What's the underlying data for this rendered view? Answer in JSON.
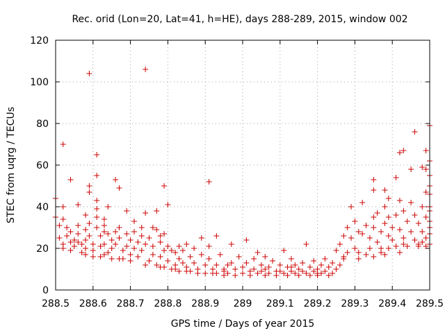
{
  "chart_data": {
    "type": "scatter",
    "title": "Rec. orid (Lon=20, Lat=41, h=HE), days 288-289, 2015, window 002",
    "xlabel": "GPS time / Days of year 2015",
    "ylabel": "STEC from uqrg / TECUs",
    "xlim": [
      288.5,
      289.5
    ],
    "ylim": [
      0,
      120
    ],
    "xticks": [
      288.5,
      288.6,
      288.7,
      288.8,
      288.9,
      289.0,
      289.1,
      289.2,
      289.3,
      289.4,
      289.5
    ],
    "xtick_labels": [
      "288.5",
      "288.6",
      "288.7",
      "288.8",
      "288.9",
      "289",
      "289.1",
      "289.2",
      "289.3",
      "289.4",
      "289.5"
    ],
    "yticks": [
      0,
      20,
      40,
      60,
      80,
      100,
      120
    ],
    "ytick_labels": [
      "0",
      "20",
      "40",
      "60",
      "80",
      "100",
      "120"
    ],
    "grid": true,
    "marker": "+",
    "color": "#cc0000",
    "series": [
      {
        "name": "STEC",
        "points": [
          [
            288.5,
            44
          ],
          [
            288.5,
            35
          ],
          [
            288.51,
            31
          ],
          [
            288.51,
            25
          ],
          [
            288.52,
            70
          ],
          [
            288.52,
            40
          ],
          [
            288.52,
            34
          ],
          [
            288.52,
            22
          ],
          [
            288.52,
            20
          ],
          [
            288.53,
            30
          ],
          [
            288.53,
            26
          ],
          [
            288.54,
            53
          ],
          [
            288.54,
            28
          ],
          [
            288.54,
            23
          ],
          [
            288.54,
            19
          ],
          [
            288.55,
            24
          ],
          [
            288.55,
            21
          ],
          [
            288.56,
            41
          ],
          [
            288.56,
            31
          ],
          [
            288.56,
            27
          ],
          [
            288.57,
            22
          ],
          [
            288.57,
            18
          ],
          [
            288.58,
            36
          ],
          [
            288.58,
            29
          ],
          [
            288.58,
            24
          ],
          [
            288.58,
            20
          ],
          [
            288.58,
            17
          ],
          [
            288.59,
            104
          ],
          [
            288.59,
            50
          ],
          [
            288.59,
            47
          ],
          [
            288.59,
            32
          ],
          [
            288.59,
            26
          ],
          [
            288.6,
            22
          ],
          [
            288.6,
            16
          ],
          [
            288.61,
            65
          ],
          [
            288.61,
            55
          ],
          [
            288.61,
            43
          ],
          [
            288.61,
            39
          ],
          [
            288.61,
            35
          ],
          [
            288.61,
            30
          ],
          [
            288.62,
            26
          ],
          [
            288.62,
            21
          ],
          [
            288.62,
            16
          ],
          [
            288.63,
            34
          ],
          [
            288.63,
            31
          ],
          [
            288.63,
            28
          ],
          [
            288.63,
            22
          ],
          [
            288.64,
            40
          ],
          [
            288.64,
            27
          ],
          [
            288.64,
            18
          ],
          [
            288.65,
            24
          ],
          [
            288.65,
            20
          ],
          [
            288.65,
            15
          ],
          [
            288.66,
            53
          ],
          [
            288.66,
            28
          ],
          [
            288.66,
            22
          ],
          [
            288.67,
            49
          ],
          [
            288.67,
            30
          ],
          [
            288.67,
            25
          ],
          [
            288.68,
            19
          ],
          [
            288.68,
            15
          ],
          [
            288.69,
            38
          ],
          [
            288.69,
            27
          ],
          [
            288.69,
            21
          ],
          [
            288.7,
            24
          ],
          [
            288.7,
            17
          ],
          [
            288.71,
            33
          ],
          [
            288.71,
            28
          ],
          [
            288.71,
            20
          ],
          [
            288.72,
            23
          ],
          [
            288.72,
            16
          ],
          [
            288.73,
            30
          ],
          [
            288.73,
            26
          ],
          [
            288.73,
            19
          ],
          [
            288.74,
            106
          ],
          [
            288.74,
            37
          ],
          [
            288.74,
            22
          ],
          [
            288.75,
            25
          ],
          [
            288.75,
            14
          ],
          [
            288.76,
            30
          ],
          [
            288.76,
            21
          ],
          [
            288.76,
            17
          ],
          [
            288.77,
            38
          ],
          [
            288.77,
            29
          ],
          [
            288.77,
            12
          ],
          [
            288.78,
            26
          ],
          [
            288.78,
            23
          ],
          [
            288.78,
            16
          ],
          [
            288.79,
            50
          ],
          [
            288.79,
            27
          ],
          [
            288.79,
            19
          ],
          [
            288.79,
            11
          ],
          [
            288.8,
            41
          ],
          [
            288.8,
            21
          ],
          [
            288.8,
            14
          ],
          [
            288.81,
            19
          ],
          [
            288.81,
            10
          ],
          [
            288.82,
            18
          ],
          [
            288.82,
            12
          ],
          [
            288.83,
            21
          ],
          [
            288.83,
            15
          ],
          [
            288.83,
            9
          ],
          [
            288.84,
            13
          ],
          [
            288.84,
            19
          ],
          [
            288.85,
            22
          ],
          [
            288.85,
            11
          ],
          [
            288.86,
            16
          ],
          [
            288.86,
            9
          ],
          [
            288.87,
            20
          ],
          [
            288.87,
            13
          ],
          [
            288.88,
            10
          ],
          [
            288.89,
            25
          ],
          [
            288.89,
            17
          ],
          [
            288.9,
            12
          ],
          [
            288.9,
            8
          ],
          [
            288.91,
            52
          ],
          [
            288.91,
            21
          ],
          [
            288.91,
            15
          ],
          [
            288.92,
            10
          ],
          [
            288.93,
            26
          ],
          [
            288.93,
            12
          ],
          [
            288.93,
            8
          ],
          [
            288.94,
            17
          ],
          [
            288.95,
            10
          ],
          [
            288.95,
            9
          ],
          [
            288.96,
            12
          ],
          [
            288.96,
            8
          ],
          [
            288.97,
            22
          ],
          [
            288.97,
            13
          ],
          [
            288.98,
            10
          ],
          [
            288.98,
            7
          ],
          [
            288.99,
            16
          ],
          [
            289.0,
            11
          ],
          [
            289.0,
            8
          ],
          [
            289.01,
            24
          ],
          [
            289.01,
            13
          ],
          [
            289.02,
            9
          ],
          [
            289.02,
            7
          ],
          [
            289.03,
            15
          ],
          [
            289.03,
            10
          ],
          [
            289.04,
            18
          ],
          [
            289.04,
            8
          ],
          [
            289.05,
            12
          ],
          [
            289.05,
            9
          ],
          [
            289.06,
            16
          ],
          [
            289.06,
            7
          ],
          [
            289.07,
            11
          ],
          [
            289.07,
            8
          ],
          [
            289.08,
            14
          ],
          [
            289.09,
            9
          ],
          [
            289.09,
            7
          ],
          [
            289.1,
            12
          ],
          [
            289.1,
            9
          ],
          [
            289.11,
            19
          ],
          [
            289.11,
            8
          ],
          [
            289.12,
            11
          ],
          [
            289.12,
            7
          ],
          [
            289.13,
            15
          ],
          [
            289.13,
            9
          ],
          [
            289.14,
            12
          ],
          [
            289.14,
            8
          ],
          [
            289.15,
            10
          ],
          [
            289.15,
            7
          ],
          [
            289.16,
            13
          ],
          [
            289.16,
            9
          ],
          [
            289.17,
            22
          ],
          [
            289.17,
            8
          ],
          [
            289.18,
            11
          ],
          [
            289.18,
            7
          ],
          [
            289.19,
            14
          ],
          [
            289.19,
            9
          ],
          [
            289.2,
            10
          ],
          [
            289.2,
            7
          ],
          [
            289.21,
            12
          ],
          [
            289.21,
            8
          ],
          [
            289.22,
            15
          ],
          [
            289.22,
            9
          ],
          [
            289.23,
            11
          ],
          [
            289.23,
            7
          ],
          [
            289.24,
            13
          ],
          [
            289.24,
            8
          ],
          [
            289.25,
            10
          ],
          [
            289.25,
            19
          ],
          [
            289.26,
            22
          ],
          [
            289.26,
            12
          ],
          [
            289.27,
            26
          ],
          [
            289.27,
            15
          ],
          [
            289.28,
            30
          ],
          [
            289.28,
            18
          ],
          [
            289.29,
            40
          ],
          [
            289.29,
            25
          ],
          [
            289.3,
            20
          ],
          [
            289.3,
            33
          ],
          [
            289.31,
            28
          ],
          [
            289.31,
            18
          ],
          [
            289.32,
            27
          ],
          [
            289.32,
            42
          ],
          [
            289.33,
            31
          ],
          [
            289.33,
            17
          ],
          [
            289.34,
            25
          ],
          [
            289.34,
            20
          ],
          [
            289.35,
            53
          ],
          [
            289.35,
            48
          ],
          [
            289.35,
            35
          ],
          [
            289.35,
            30
          ],
          [
            289.35,
            16
          ],
          [
            289.36,
            23
          ],
          [
            289.36,
            37
          ],
          [
            289.37,
            28
          ],
          [
            289.37,
            20
          ],
          [
            289.38,
            48
          ],
          [
            289.38,
            32
          ],
          [
            289.38,
            40
          ],
          [
            289.38,
            17
          ],
          [
            289.39,
            44
          ],
          [
            289.39,
            35
          ],
          [
            289.39,
            26
          ],
          [
            289.39,
            20
          ],
          [
            289.4,
            30
          ],
          [
            289.4,
            24
          ],
          [
            289.41,
            54
          ],
          [
            289.41,
            36
          ],
          [
            289.41,
            21
          ],
          [
            289.42,
            66
          ],
          [
            289.42,
            43
          ],
          [
            289.42,
            29
          ],
          [
            289.42,
            18
          ],
          [
            289.43,
            67
          ],
          [
            289.43,
            38
          ],
          [
            289.43,
            25
          ],
          [
            289.44,
            33
          ],
          [
            289.44,
            21
          ],
          [
            289.45,
            58
          ],
          [
            289.45,
            28
          ],
          [
            289.45,
            42
          ],
          [
            289.46,
            76
          ],
          [
            289.46,
            36
          ],
          [
            289.46,
            24
          ],
          [
            289.47,
            32
          ],
          [
            289.47,
            22
          ],
          [
            289.48,
            59
          ],
          [
            289.48,
            40
          ],
          [
            289.48,
            28
          ],
          [
            289.48,
            23
          ],
          [
            289.49,
            67
          ],
          [
            289.49,
            58
          ],
          [
            289.49,
            47
          ],
          [
            289.49,
            35
          ],
          [
            289.49,
            25
          ],
          [
            289.49,
            21
          ],
          [
            289.5,
            79
          ],
          [
            289.5,
            55
          ],
          [
            289.5,
            40
          ],
          [
            289.5,
            33
          ],
          [
            289.5,
            27
          ],
          [
            289.5,
            62
          ],
          [
            289.5,
            50
          ],
          [
            289.5,
            46
          ],
          [
            289.5,
            38
          ],
          [
            289.5,
            30
          ],
          [
            289.5,
            22
          ],
          [
            288.56,
            23
          ],
          [
            288.6,
            19
          ],
          [
            288.63,
            17
          ],
          [
            288.67,
            15
          ],
          [
            288.7,
            14
          ],
          [
            288.74,
            12
          ],
          [
            288.78,
            11
          ],
          [
            288.82,
            10
          ],
          [
            288.85,
            9
          ],
          [
            288.88,
            8
          ],
          [
            288.92,
            8
          ],
          [
            288.95,
            7
          ],
          [
            289.06,
            10
          ],
          [
            289.13,
            11
          ],
          [
            289.2,
            8
          ],
          [
            289.27,
            16
          ],
          [
            289.31,
            15
          ],
          [
            289.37,
            18
          ],
          [
            289.43,
            22
          ],
          [
            289.47,
            21
          ]
        ]
      }
    ]
  }
}
